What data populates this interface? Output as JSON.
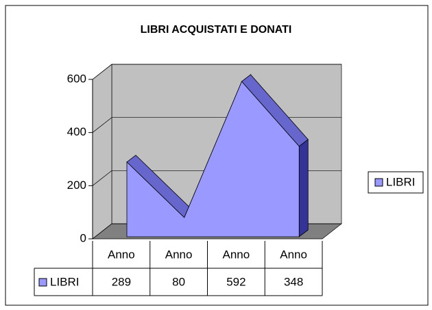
{
  "chart_data": {
    "type": "area",
    "title": "LIBRI ACQUISTATI E DONATI",
    "categories": [
      "Anno",
      "Anno",
      "Anno",
      "Anno"
    ],
    "series": [
      {
        "name": "LIBRI",
        "color": "#9999ff",
        "values": [
          289,
          80,
          592,
          348
        ]
      }
    ],
    "ylim": [
      0,
      600
    ],
    "yticks": [
      0,
      200,
      400,
      600
    ],
    "grid": true,
    "legend": "right",
    "data_table": true
  }
}
